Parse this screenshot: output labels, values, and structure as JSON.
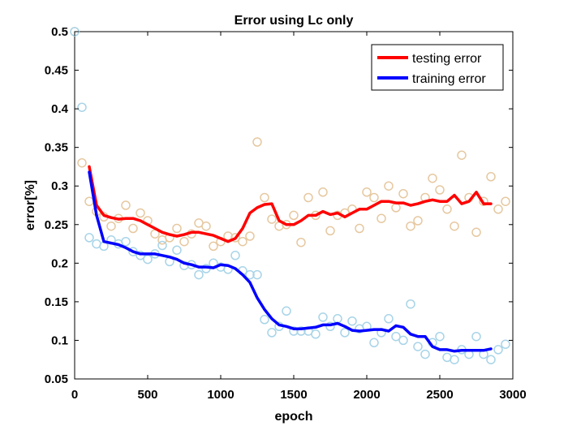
{
  "chart_data": {
    "type": "line",
    "title": "Error using Lc only",
    "xlabel": "epoch",
    "ylabel": "error[%]",
    "xlim": [
      0,
      3000
    ],
    "ylim": [
      0.05,
      0.5
    ],
    "xticks": [
      0,
      500,
      1000,
      1500,
      2000,
      2500,
      3000
    ],
    "yticks": [
      0.05,
      0.1,
      0.15,
      0.2,
      0.25,
      0.3,
      0.35,
      0.4,
      0.45,
      0.5
    ],
    "xtick_labels": [
      "0",
      "500",
      "1000",
      "1500",
      "2000",
      "2500",
      "3000"
    ],
    "ytick_labels": [
      "0.05",
      "0.1",
      "0.15",
      "0.2",
      "0.25",
      "0.3",
      "0.35",
      "0.4",
      "0.45",
      "0.5"
    ],
    "grid": false,
    "legend_position": "top-right",
    "series": [
      {
        "name": "testing error",
        "kind": "line",
        "color": "#ff0000",
        "x": [
          100,
          150,
          200,
          250,
          300,
          350,
          400,
          450,
          500,
          550,
          600,
          650,
          700,
          750,
          800,
          850,
          900,
          950,
          1000,
          1050,
          1100,
          1150,
          1200,
          1250,
          1300,
          1350,
          1400,
          1450,
          1500,
          1550,
          1600,
          1650,
          1700,
          1750,
          1800,
          1850,
          1900,
          1950,
          2000,
          2050,
          2100,
          2150,
          2200,
          2250,
          2300,
          2350,
          2400,
          2450,
          2500,
          2550,
          2600,
          2650,
          2700,
          2750,
          2800,
          2850
        ],
        "y": [
          0.325,
          0.275,
          0.262,
          0.259,
          0.257,
          0.258,
          0.258,
          0.255,
          0.25,
          0.245,
          0.24,
          0.237,
          0.235,
          0.237,
          0.24,
          0.24,
          0.238,
          0.236,
          0.232,
          0.228,
          0.232,
          0.245,
          0.265,
          0.272,
          0.276,
          0.277,
          0.255,
          0.25,
          0.25,
          0.255,
          0.262,
          0.262,
          0.267,
          0.263,
          0.265,
          0.26,
          0.265,
          0.27,
          0.27,
          0.275,
          0.28,
          0.28,
          0.278,
          0.278,
          0.275,
          0.277,
          0.28,
          0.282,
          0.28,
          0.28,
          0.288,
          0.277,
          0.28,
          0.292,
          0.277,
          0.277
        ]
      },
      {
        "name": "training error",
        "kind": "line",
        "color": "#0000ff",
        "x": [
          100,
          150,
          200,
          250,
          300,
          350,
          400,
          450,
          500,
          550,
          600,
          650,
          700,
          750,
          800,
          850,
          900,
          950,
          1000,
          1050,
          1100,
          1150,
          1200,
          1250,
          1300,
          1350,
          1400,
          1450,
          1500,
          1550,
          1600,
          1650,
          1700,
          1750,
          1800,
          1850,
          1900,
          1950,
          2000,
          2050,
          2100,
          2150,
          2200,
          2250,
          2300,
          2350,
          2400,
          2450,
          2500,
          2550,
          2600,
          2650,
          2700,
          2750,
          2800,
          2850
        ],
        "y": [
          0.318,
          0.262,
          0.228,
          0.226,
          0.224,
          0.22,
          0.215,
          0.212,
          0.212,
          0.212,
          0.21,
          0.208,
          0.205,
          0.2,
          0.198,
          0.195,
          0.195,
          0.194,
          0.198,
          0.197,
          0.193,
          0.185,
          0.175,
          0.155,
          0.14,
          0.128,
          0.12,
          0.118,
          0.115,
          0.115,
          0.116,
          0.117,
          0.12,
          0.12,
          0.122,
          0.118,
          0.113,
          0.112,
          0.113,
          0.114,
          0.114,
          0.112,
          0.119,
          0.117,
          0.108,
          0.105,
          0.105,
          0.092,
          0.088,
          0.088,
          0.086,
          0.087,
          0.087,
          0.087,
          0.087,
          0.089
        ]
      },
      {
        "name": "",
        "kind": "scatter",
        "color": "#e6c8a0",
        "x": [
          0,
          50,
          100,
          150,
          200,
          250,
          300,
          350,
          400,
          450,
          500,
          550,
          600,
          650,
          700,
          750,
          800,
          850,
          900,
          950,
          1000,
          1050,
          1100,
          1150,
          1200,
          1250,
          1300,
          1350,
          1400,
          1450,
          1500,
          1550,
          1600,
          1650,
          1700,
          1750,
          1800,
          1850,
          1900,
          1950,
          2000,
          2050,
          2100,
          2150,
          2200,
          2250,
          2300,
          2350,
          2400,
          2450,
          2500,
          2550,
          2600,
          2650,
          2700,
          2750,
          2800,
          2850,
          2900,
          2950
        ],
        "y": [
          0.5,
          0.33,
          0.28,
          0.267,
          0.26,
          0.248,
          0.258,
          0.275,
          0.245,
          0.265,
          0.255,
          0.238,
          0.23,
          0.233,
          0.245,
          0.228,
          0.238,
          0.252,
          0.248,
          0.222,
          0.228,
          0.235,
          0.233,
          0.228,
          0.235,
          0.357,
          0.285,
          0.257,
          0.248,
          0.25,
          0.262,
          0.227,
          0.285,
          0.262,
          0.292,
          0.242,
          0.262,
          0.265,
          0.27,
          0.245,
          0.292,
          0.285,
          0.258,
          0.3,
          0.272,
          0.29,
          0.248,
          0.255,
          0.285,
          0.31,
          0.295,
          0.27,
          0.248,
          0.34,
          0.285,
          0.24,
          0.28,
          0.312,
          0.27,
          0.28
        ]
      },
      {
        "name": "",
        "kind": "scatter",
        "color": "#a8d4e8",
        "x": [
          0,
          50,
          100,
          150,
          200,
          250,
          300,
          350,
          400,
          450,
          500,
          550,
          600,
          650,
          700,
          750,
          800,
          850,
          900,
          950,
          1000,
          1050,
          1100,
          1150,
          1200,
          1250,
          1300,
          1350,
          1400,
          1450,
          1500,
          1550,
          1600,
          1650,
          1700,
          1750,
          1800,
          1850,
          1900,
          1950,
          2000,
          2050,
          2100,
          2150,
          2200,
          2250,
          2300,
          2350,
          2400,
          2450,
          2500,
          2550,
          2600,
          2650,
          2700,
          2750,
          2800,
          2850,
          2900,
          2950
        ],
        "y": [
          0.5,
          0.402,
          0.233,
          0.225,
          0.222,
          0.23,
          0.225,
          0.228,
          0.215,
          0.21,
          0.205,
          0.212,
          0.223,
          0.202,
          0.217,
          0.197,
          0.198,
          0.185,
          0.193,
          0.2,
          0.195,
          0.192,
          0.21,
          0.19,
          0.185,
          0.185,
          0.127,
          0.11,
          0.118,
          0.138,
          0.112,
          0.112,
          0.112,
          0.108,
          0.13,
          0.118,
          0.128,
          0.11,
          0.125,
          0.115,
          0.118,
          0.097,
          0.11,
          0.128,
          0.105,
          0.1,
          0.147,
          0.092,
          0.082,
          0.097,
          0.105,
          0.078,
          0.075,
          0.088,
          0.082,
          0.105,
          0.082,
          0.075,
          0.088,
          0.095
        ]
      }
    ]
  }
}
